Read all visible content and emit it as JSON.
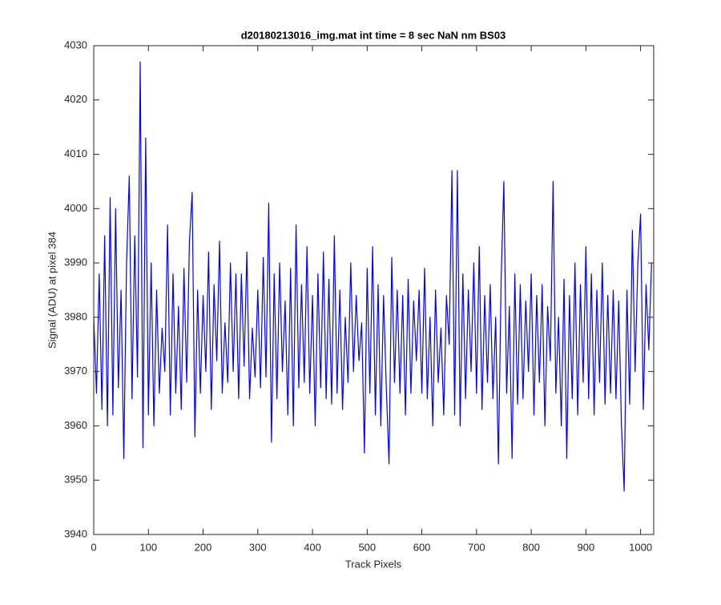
{
  "chart_data": {
    "type": "line",
    "title": "d20180213016_img.mat int time = 8 sec  NaN nm BS03",
    "x_label": "Track Pixels",
    "y_label": "Signal (ADU) at pixel 384",
    "x": [
      0,
      5,
      10,
      15,
      20,
      25,
      30,
      35,
      40,
      45,
      50,
      55,
      60,
      65,
      70,
      75,
      80,
      85,
      90,
      95,
      100,
      105,
      110,
      115,
      120,
      125,
      130,
      135,
      140,
      145,
      150,
      155,
      160,
      165,
      170,
      175,
      180,
      185,
      190,
      195,
      200,
      205,
      210,
      215,
      220,
      225,
      230,
      235,
      240,
      245,
      250,
      255,
      260,
      265,
      270,
      275,
      280,
      285,
      290,
      295,
      300,
      305,
      310,
      315,
      320,
      325,
      330,
      335,
      340,
      345,
      350,
      355,
      360,
      365,
      370,
      375,
      380,
      385,
      390,
      395,
      400,
      405,
      410,
      415,
      420,
      425,
      430,
      435,
      440,
      445,
      450,
      455,
      460,
      465,
      470,
      475,
      480,
      485,
      490,
      495,
      500,
      505,
      510,
      515,
      520,
      525,
      530,
      535,
      540,
      545,
      550,
      555,
      560,
      565,
      570,
      575,
      580,
      585,
      590,
      595,
      600,
      605,
      610,
      615,
      620,
      625,
      630,
      635,
      640,
      645,
      650,
      655,
      660,
      665,
      670,
      675,
      680,
      685,
      690,
      695,
      700,
      705,
      710,
      715,
      720,
      725,
      730,
      735,
      740,
      745,
      750,
      755,
      760,
      765,
      770,
      775,
      780,
      785,
      790,
      795,
      800,
      805,
      810,
      815,
      820,
      825,
      830,
      835,
      840,
      845,
      850,
      855,
      860,
      865,
      870,
      875,
      880,
      885,
      890,
      895,
      900,
      905,
      910,
      915,
      920,
      925,
      930,
      935,
      940,
      945,
      950,
      955,
      960,
      965,
      970,
      975,
      980,
      985,
      990,
      995,
      1000,
      1005,
      1010,
      1015,
      1020
    ],
    "series": [
      {
        "color": "#0000ff",
        "values": [
          3980,
          3966,
          3988,
          3963,
          3995,
          3960,
          4002,
          3962,
          4000,
          3967,
          3985,
          3954,
          3990,
          4006,
          3965,
          3995,
          3969,
          4027,
          3956,
          4013,
          3962,
          3990,
          3960,
          3985,
          3966,
          3978,
          3970,
          3997,
          3962,
          3988,
          3966,
          3982,
          3963,
          3989,
          3968,
          3994,
          4003,
          3958,
          3985,
          3966,
          3984,
          3970,
          3992,
          3963,
          3986,
          3972,
          3994,
          3966,
          3979,
          3968,
          3990,
          3970,
          3988,
          3965,
          3988,
          3971,
          3992,
          3965,
          3978,
          3969,
          3985,
          3967,
          3991,
          3969,
          4001,
          3957,
          3988,
          3965,
          3990,
          3970,
          3983,
          3962,
          3989,
          3960,
          3997,
          3967,
          3986,
          3968,
          3993,
          3966,
          3984,
          3960,
          3988,
          3967,
          3992,
          3965,
          3987,
          3964,
          3995,
          3966,
          3985,
          3963,
          3980,
          3968,
          3990,
          3970,
          3984,
          3972,
          3979,
          3955,
          3989,
          3966,
          3993,
          3962,
          3986,
          3960,
          3984,
          3967,
          3953,
          3991,
          3968,
          3985,
          3966,
          3984,
          3962,
          3987,
          3966,
          3983,
          3972,
          3985,
          3966,
          3989,
          3965,
          3980,
          3960,
          3985,
          3968,
          3978,
          3962,
          3984,
          3975,
          4007,
          3962,
          4007,
          3960,
          3988,
          3965,
          3985,
          3970,
          3990,
          3966,
          3993,
          3963,
          3984,
          3968,
          3986,
          3965,
          3980,
          3953,
          3987,
          4005,
          3966,
          3982,
          3954,
          3988,
          3964,
          3986,
          3965,
          3983,
          3970,
          3988,
          3962,
          3984,
          3968,
          3986,
          3960,
          3982,
          3972,
          4005,
          3966,
          3980,
          3960,
          3987,
          3954,
          3984,
          3965,
          3990,
          3962,
          3986,
          3968,
          3993,
          3965,
          3988,
          3962,
          3985,
          3968,
          3990,
          3964,
          3984,
          3966,
          3985,
          3965,
          3983,
          3960,
          3948,
          3985,
          3964,
          3996,
          3970,
          3990,
          3999,
          3963,
          3986,
          3974,
          3990
        ]
      }
    ],
    "xlim": [
      0,
      1024
    ],
    "xticks": [
      0,
      100,
      200,
      300,
      400,
      500,
      600,
      700,
      800,
      900,
      1000
    ],
    "ylim": [
      3940,
      4030
    ],
    "yticks": [
      3940,
      3950,
      3960,
      3970,
      3980,
      3990,
      4000,
      4010,
      4020,
      4030
    ],
    "grid": false
  }
}
